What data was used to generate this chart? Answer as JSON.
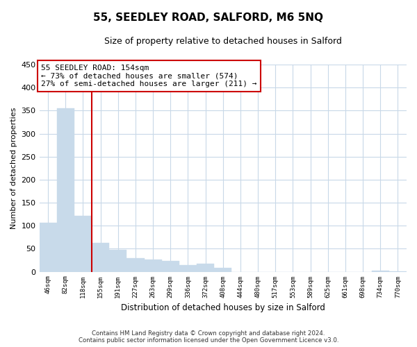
{
  "title": "55, SEEDLEY ROAD, SALFORD, M6 5NQ",
  "subtitle": "Size of property relative to detached houses in Salford",
  "xlabel": "Distribution of detached houses by size in Salford",
  "ylabel": "Number of detached properties",
  "bar_labels": [
    "46sqm",
    "82sqm",
    "118sqm",
    "155sqm",
    "191sqm",
    "227sqm",
    "263sqm",
    "299sqm",
    "336sqm",
    "372sqm",
    "408sqm",
    "444sqm",
    "480sqm",
    "517sqm",
    "553sqm",
    "589sqm",
    "625sqm",
    "661sqm",
    "698sqm",
    "734sqm",
    "770sqm"
  ],
  "bar_values": [
    106,
    355,
    122,
    62,
    48,
    30,
    26,
    24,
    14,
    17,
    8,
    0,
    0,
    0,
    0,
    0,
    0,
    0,
    0,
    3,
    1
  ],
  "bar_color": "#c8daea",
  "bar_edge_color": "#c8daea",
  "vline_color": "#cc0000",
  "ylim": [
    0,
    450
  ],
  "yticks": [
    0,
    50,
    100,
    150,
    200,
    250,
    300,
    350,
    400,
    450
  ],
  "annotation_title": "55 SEEDLEY ROAD: 154sqm",
  "annotation_line1": "← 73% of detached houses are smaller (574)",
  "annotation_line2": "27% of semi-detached houses are larger (211) →",
  "annotation_box_color": "#ffffff",
  "annotation_box_edge": "#cc0000",
  "footer_line1": "Contains HM Land Registry data © Crown copyright and database right 2024.",
  "footer_line2": "Contains public sector information licensed under the Open Government Licence v3.0.",
  "background_color": "#ffffff",
  "grid_color": "#c8d8e8"
}
